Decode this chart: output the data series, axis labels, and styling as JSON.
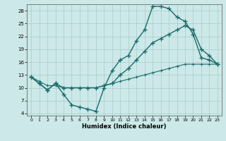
{
  "xlabel": "Humidex (Indice chaleur)",
  "bg_color": "#cce8e8",
  "grid_color": "#a8cccc",
  "line_color": "#1a6b6b",
  "xlim": [
    -0.5,
    23.5
  ],
  "ylim": [
    3.5,
    29.5
  ],
  "xticks": [
    0,
    1,
    2,
    3,
    4,
    5,
    6,
    7,
    8,
    9,
    10,
    11,
    12,
    13,
    14,
    15,
    16,
    17,
    18,
    19,
    20,
    21,
    22,
    23
  ],
  "yticks": [
    4,
    7,
    10,
    13,
    16,
    19,
    22,
    25,
    28
  ],
  "line1_x": [
    0,
    1,
    2,
    3,
    4,
    5,
    6,
    7,
    8,
    9,
    10,
    11,
    12,
    13,
    14,
    15,
    16,
    17,
    18,
    19,
    20,
    21,
    22,
    23
  ],
  "line1_y": [
    12.5,
    11.0,
    9.5,
    11.0,
    8.5,
    6.0,
    5.5,
    5.0,
    4.5,
    10.0,
    14.0,
    16.5,
    17.5,
    21.0,
    23.5,
    29.0,
    29.0,
    28.5,
    26.5,
    25.5,
    22.5,
    17.0,
    16.5,
    15.5
  ],
  "line2_x": [
    0,
    1,
    2,
    3,
    4,
    5,
    6,
    7,
    8,
    9,
    10,
    11,
    12,
    13,
    14,
    15,
    16,
    17,
    18,
    19,
    20,
    21,
    22,
    23
  ],
  "line2_y": [
    12.5,
    11.0,
    9.5,
    11.0,
    10.0,
    10.0,
    10.0,
    10.0,
    10.0,
    10.5,
    11.0,
    13.0,
    14.5,
    16.5,
    18.5,
    20.5,
    21.5,
    22.5,
    23.5,
    24.5,
    23.5,
    19.0,
    17.5,
    15.5
  ],
  "line3_x": [
    0,
    1,
    2,
    3,
    4,
    5,
    6,
    7,
    8,
    9,
    10,
    11,
    12,
    13,
    14,
    15,
    16,
    17,
    18,
    19,
    20,
    21,
    22,
    23
  ],
  "line3_y": [
    12.5,
    11.5,
    10.5,
    10.5,
    10.0,
    10.0,
    10.0,
    10.0,
    10.0,
    10.5,
    11.0,
    11.5,
    12.0,
    12.5,
    13.0,
    13.5,
    14.0,
    14.5,
    15.0,
    15.5,
    15.5,
    15.5,
    15.5,
    15.5
  ]
}
